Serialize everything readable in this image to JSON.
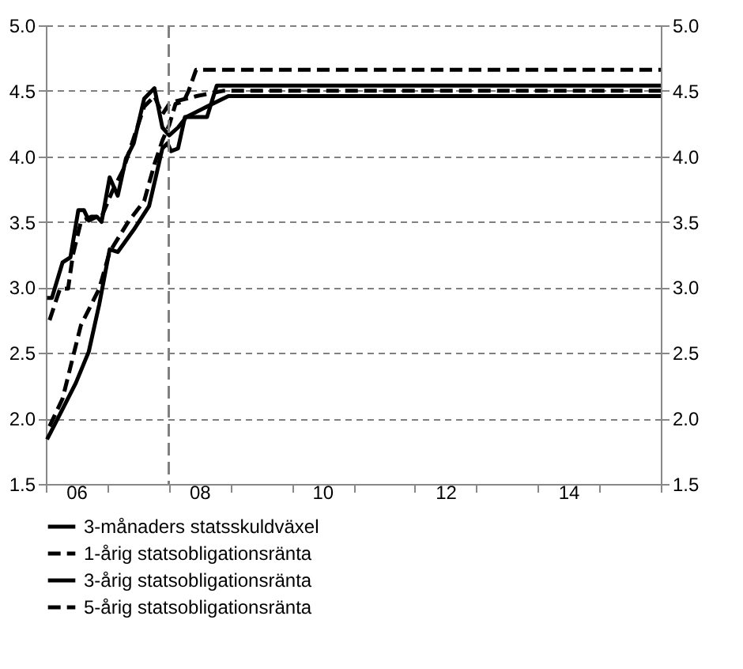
{
  "chart_data": {
    "type": "line",
    "xlim": [
      "2006-01-01",
      "2016-01-01"
    ],
    "xticks": [
      {
        "value": "2006-01-01",
        "label": null
      },
      {
        "value": "2006-07-01",
        "label": "06"
      },
      {
        "value": "2007-01-01",
        "label": null
      },
      {
        "value": "2008-01-01",
        "label": null
      },
      {
        "value": "2008-07-01",
        "label": "08"
      },
      {
        "value": "2009-01-01",
        "label": null
      },
      {
        "value": "2010-01-01",
        "label": null
      },
      {
        "value": "2010-07-01",
        "label": "10"
      },
      {
        "value": "2011-01-01",
        "label": null
      },
      {
        "value": "2012-01-01",
        "label": null
      },
      {
        "value": "2012-07-01",
        "label": "12"
      },
      {
        "value": "2013-01-01",
        "label": null
      },
      {
        "value": "2014-01-01",
        "label": null
      },
      {
        "value": "2014-07-01",
        "label": "14"
      },
      {
        "value": "2015-01-01",
        "label": null
      },
      {
        "value": "2016-01-01",
        "label": null
      }
    ],
    "ylim": [
      1.5,
      5.0
    ],
    "yticks": [
      1.5,
      {
        "value": 2,
        "label": "2.0"
      },
      2.5,
      {
        "value": 3,
        "label": "3.0"
      },
      3.5,
      {
        "value": 4,
        "label": "4.0"
      },
      4.5,
      {
        "value": 5,
        "label": "5.0"
      }
    ],
    "y2lim": [
      1.5,
      5.0
    ],
    "y2ticks": [
      1.5,
      {
        "value": 2,
        "label": "2.0"
      },
      2.5,
      {
        "value": 3,
        "label": "3.0"
      },
      3.5,
      {
        "value": 4,
        "label": "4.0"
      },
      4.5,
      {
        "value": 5,
        "label": "5.0"
      }
    ],
    "grid": "y",
    "legend": "bottom",
    "marker": "none",
    "ref_lines": [
      {
        "axis": "x",
        "value": "2008-01-01",
        "label": null,
        "color": "#808080",
        "line_style": "dashed"
      }
    ],
    "series": [
      {
        "name": "3-månaders statsskuldväxel",
        "color": "#000000",
        "line_style": "solid",
        "x": [
          "2006-01-08",
          "2006-02-25",
          "2006-06-28",
          "2006-09-13",
          "2006-11-14",
          "2007-01-15",
          "2007-03-04",
          "2007-06-07",
          "2007-09-06",
          "2007-11-24",
          "2007-12-24",
          "2008-01-15",
          "2008-02-25",
          "2008-04-06",
          "2008-08-15",
          "2008-10-12",
          "2016-01-01"
        ],
        "values": [
          1.84,
          1.96,
          2.27,
          2.51,
          2.87,
          3.29,
          3.27,
          3.44,
          3.62,
          4.06,
          4.1,
          4.04,
          4.06,
          4.3,
          4.3,
          4.54,
          4.54
        ]
      },
      {
        "name": "1-årig statsobligationsränta",
        "color": "#000000",
        "line_style": "dashed",
        "x": [
          "2006-01-23",
          "2006-04-10",
          "2006-07-28",
          "2006-11-14",
          "2007-01-15",
          "2007-05-05",
          "2007-08-08",
          "2007-10-08",
          "2007-11-24",
          "2008-01-04",
          "2008-02-10",
          "2008-03-30",
          "2008-04-28",
          "2008-06-11",
          "2016-01-01"
        ],
        "values": [
          1.94,
          2.15,
          2.71,
          2.99,
          3.27,
          3.5,
          3.66,
          3.94,
          4.12,
          4.24,
          4.4,
          4.42,
          4.5,
          4.66,
          4.66
        ]
      },
      {
        "name": "3-årig statsobligationsränta",
        "color": "#000000",
        "line_style": "solid",
        "x": [
          "2006-01-08",
          "2006-02-06",
          "2006-04-10",
          "2006-05-27",
          "2006-07-13",
          "2006-08-15",
          "2006-09-13",
          "2006-10-31",
          "2006-11-28",
          "2007-01-15",
          "2007-03-04",
          "2007-04-21",
          "2007-06-07",
          "2007-08-08",
          "2007-10-08",
          "2007-11-24",
          "2008-01-04",
          "2008-02-25",
          "2008-04-14",
          "2008-08-15",
          "2008-12-20",
          "2016-01-01"
        ],
        "values": [
          2.92,
          2.92,
          3.19,
          3.23,
          3.59,
          3.59,
          3.51,
          3.54,
          3.5,
          3.84,
          3.7,
          3.98,
          4.1,
          4.44,
          4.52,
          4.22,
          4.16,
          4.22,
          4.3,
          4.38,
          4.46,
          4.46
        ]
      },
      {
        "name": "5-årig statsobligationsränta",
        "color": "#000000",
        "line_style": "dashed",
        "x": [
          "2006-01-23",
          "2006-03-26",
          "2006-05-13",
          "2006-06-11",
          "2006-07-28",
          "2006-09-28",
          "2006-11-28",
          "2007-02-02",
          "2007-04-06",
          "2007-06-07",
          "2007-08-08",
          "2007-10-08",
          "2007-11-24",
          "2008-01-04",
          "2008-02-10",
          "2008-06-15",
          "2008-11-18",
          "2016-01-01"
        ],
        "values": [
          2.75,
          2.99,
          2.99,
          3.25,
          3.5,
          3.54,
          3.54,
          3.74,
          3.9,
          4.14,
          4.38,
          4.46,
          4.32,
          4.4,
          4.42,
          4.46,
          4.5,
          4.5
        ]
      }
    ]
  }
}
